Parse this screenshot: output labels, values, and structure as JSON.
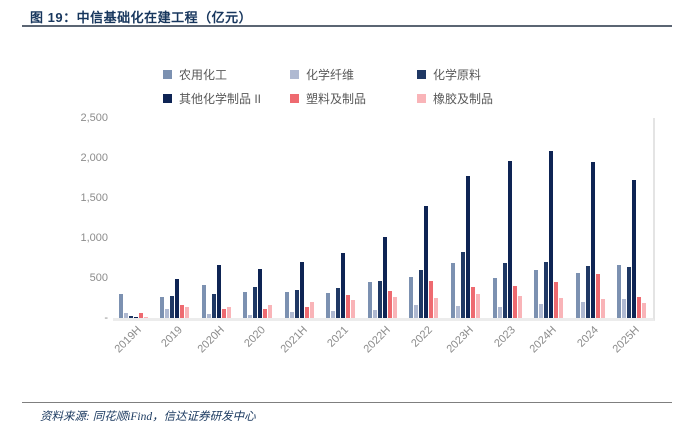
{
  "header": {
    "title": "图 19：中信基础化在建工程（亿元）"
  },
  "footer": {
    "source": "资料来源: 同花顺iFind，信达证券研发中心"
  },
  "chart_data": {
    "type": "bar",
    "title": "中信基础化在建工程（亿元）",
    "categories": [
      "2019H",
      "2019",
      "2020H",
      "2020",
      "2021H",
      "2021",
      "2022H",
      "2022",
      "2023H",
      "2023",
      "2024H",
      "2024",
      "2025H"
    ],
    "series": [
      {
        "name": "农用化工",
        "color": "#7c91b1",
        "values": [
          300,
          260,
          410,
          325,
          325,
          310,
          450,
          510,
          690,
          500,
          600,
          560,
          660
        ]
      },
      {
        "name": "化学纤维",
        "color": "#afb9d1",
        "values": [
          60,
          110,
          50,
          40,
          75,
          90,
          100,
          160,
          150,
          140,
          175,
          200,
          240
        ]
      },
      {
        "name": "化学原料",
        "color": "#1f3864",
        "values": [
          25,
          275,
          300,
          390,
          350,
          375,
          460,
          600,
          825,
          690,
          700,
          650,
          640
        ]
      },
      {
        "name": "其他化学制品 II",
        "color": "#0e2454",
        "values": [
          10,
          490,
          660,
          610,
          700,
          810,
          1010,
          1400,
          1775,
          1960,
          2090,
          1950,
          1730
        ]
      },
      {
        "name": "塑料及制品",
        "color": "#ee6a70",
        "values": [
          60,
          160,
          110,
          110,
          140,
          290,
          340,
          460,
          390,
          400,
          450,
          550,
          260
        ]
      },
      {
        "name": "橡胶及制品",
        "color": "#f9b4b8",
        "values": [
          10,
          140,
          140,
          160,
          200,
          230,
          260,
          250,
          300,
          275,
          250,
          240,
          190
        ]
      }
    ],
    "ylim": [
      0,
      2500
    ],
    "yticks": [
      "2,500",
      "2,000",
      "1,500",
      "1,000",
      "500",
      "-"
    ],
    "ytick_values": [
      2500,
      2000,
      1500,
      1000,
      500,
      0
    ],
    "legend_position": "top",
    "grid": false,
    "xlabel": "",
    "ylabel": ""
  }
}
